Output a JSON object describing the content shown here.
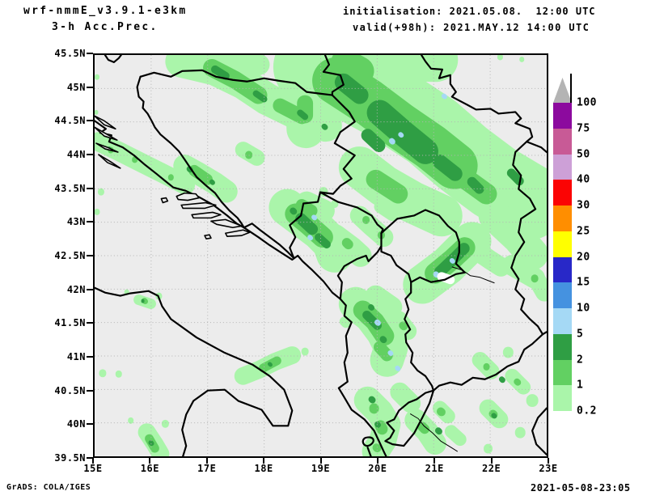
{
  "header": {
    "model": "wrf-nmmE_v3.9.1-e3km",
    "product": "3-h Acc.Prec.",
    "init_label": "initialisation: 2021.05.08.  12:00 UTC",
    "valid_label": "valid(+98h): 2021.MAY.12 14:00 UTC"
  },
  "footer": {
    "left": "GrADS: COLA/IGES",
    "right": "2021-05-08-23:05"
  },
  "axes": {
    "y_ticks": [
      "45.5N",
      "45N",
      "44.5N",
      "44N",
      "43.5N",
      "43N",
      "42.5N",
      "42N",
      "41.5N",
      "41N",
      "40.5N",
      "40N",
      "39.5N"
    ],
    "x_ticks": [
      "15E",
      "16E",
      "17E",
      "18E",
      "19E",
      "20E",
      "21E",
      "22E",
      "23E"
    ]
  },
  "colorbar": {
    "values": [
      "100",
      "75",
      "50",
      "40",
      "30",
      "25",
      "20",
      "15",
      "10",
      "5",
      "2",
      "1",
      "0.2"
    ],
    "colors": [
      "#8c0a9e",
      "#c85a96",
      "#cda0d7",
      "#fb0404",
      "#ff8e00",
      "#ffff00",
      "#2828c8",
      "#4592e0",
      "#a5d9f5",
      "#2f9e44",
      "#62d062",
      "#aaf5aa"
    ],
    "overflow_color": "#b4b4b4"
  },
  "map": {
    "background": "#ececec",
    "grid_color": "#b4b4b4",
    "border_color": "#000000",
    "precip_colors": {
      "light": "#aaf5aa",
      "medium": "#62d062",
      "dark": "#2f9e44",
      "heavy_cell": "#a5d9f5",
      "void": "#ffffff"
    }
  }
}
